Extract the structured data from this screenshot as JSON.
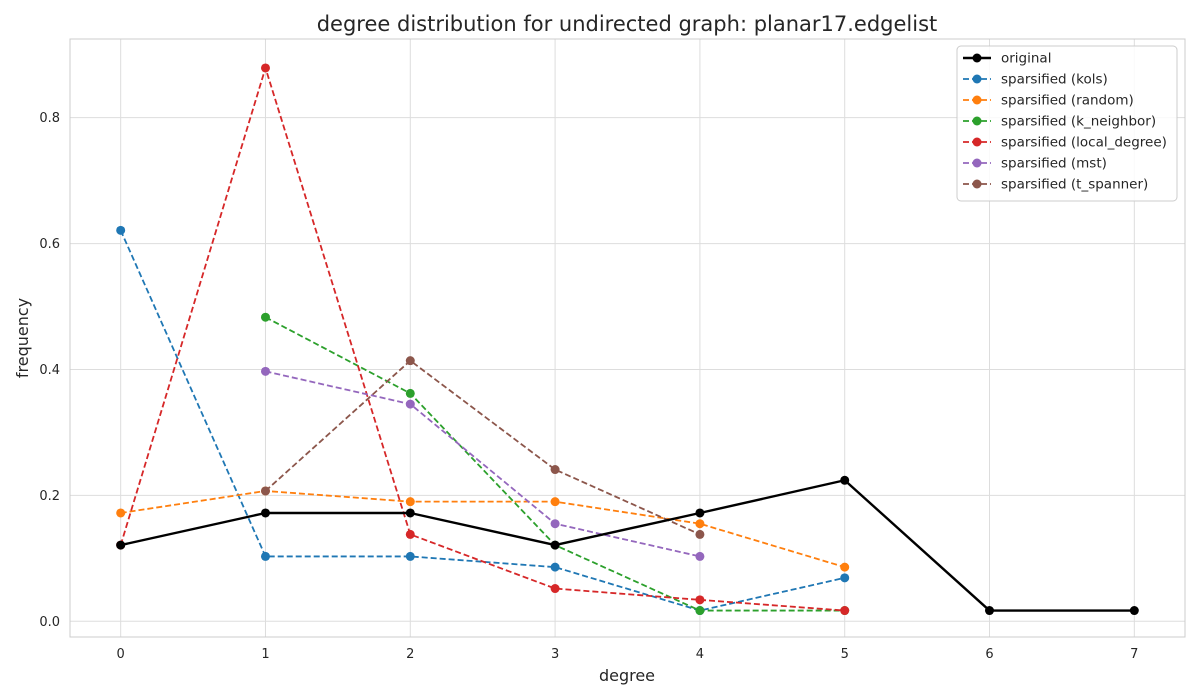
{
  "chart_data": {
    "type": "line",
    "title": "degree distribution for undirected graph: planar17.edgelist",
    "xlabel": "degree",
    "ylabel": "frequency",
    "xlim": [
      -0.35,
      7.35
    ],
    "ylim": [
      -0.025,
      0.925
    ],
    "x_ticks": [
      0,
      1,
      2,
      3,
      4,
      5,
      6,
      7
    ],
    "y_ticks": [
      0.0,
      0.2,
      0.4,
      0.6,
      0.8
    ],
    "grid": true,
    "legend_position": "top-right",
    "series": [
      {
        "name": "original",
        "color": "#000000",
        "style": "solid",
        "x": [
          0,
          1,
          2,
          3,
          4,
          5,
          6,
          7
        ],
        "y": [
          0.121,
          0.172,
          0.172,
          0.121,
          0.172,
          0.224,
          0.017,
          0.017
        ]
      },
      {
        "name": "sparsified (kols)",
        "color": "#1f77b4",
        "style": "dashed",
        "x": [
          0,
          1,
          2,
          3,
          4,
          5
        ],
        "y": [
          0.621,
          0.103,
          0.103,
          0.086,
          0.017,
          0.069
        ]
      },
      {
        "name": "sparsified (random)",
        "color": "#ff7f0e",
        "style": "dashed",
        "x": [
          0,
          1,
          2,
          3,
          4,
          5
        ],
        "y": [
          0.172,
          0.207,
          0.19,
          0.19,
          0.155,
          0.086
        ]
      },
      {
        "name": "sparsified (k_neighbor)",
        "color": "#2ca02c",
        "style": "dashed",
        "x": [
          1,
          2,
          3,
          4,
          5
        ],
        "y": [
          0.483,
          0.362,
          0.121,
          0.017,
          0.017
        ]
      },
      {
        "name": "sparsified (local_degree)",
        "color": "#d62728",
        "style": "dashed",
        "x": [
          0,
          1,
          2,
          3,
          4,
          5
        ],
        "y": [
          0.121,
          0.879,
          0.138,
          0.052,
          0.034,
          0.017
        ]
      },
      {
        "name": "sparsified (mst)",
        "color": "#9467bd",
        "style": "dashed",
        "x": [
          1,
          2,
          3,
          4
        ],
        "y": [
          0.397,
          0.345,
          0.155,
          0.103
        ]
      },
      {
        "name": "sparsified (t_spanner)",
        "color": "#8c564b",
        "style": "dashed",
        "x": [
          1,
          2,
          3,
          4
        ],
        "y": [
          0.207,
          0.414,
          0.241,
          0.138
        ]
      }
    ]
  }
}
